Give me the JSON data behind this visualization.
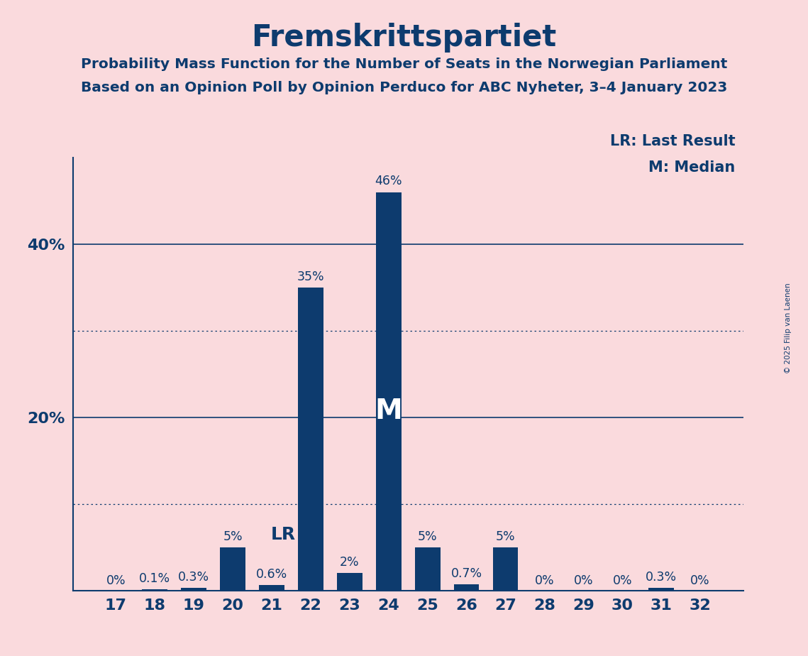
{
  "title": "Fremskrittspartiet",
  "subtitle1": "Probability Mass Function for the Number of Seats in the Norwegian Parliament",
  "subtitle2": "Based on an Opinion Poll by Opinion Perduco for ABC Nyheter, 3–4 January 2023",
  "copyright": "© 2025 Filip van Laenen",
  "legend_lr": "LR: Last Result",
  "legend_m": "M: Median",
  "background_color": "#FADADD",
  "bar_color": "#0D3B6E",
  "title_color": "#0D3B6E",
  "grid_color": "#0D3B6E",
  "categories": [
    17,
    18,
    19,
    20,
    21,
    22,
    23,
    24,
    25,
    26,
    27,
    28,
    29,
    30,
    31,
    32
  ],
  "values": [
    0.0,
    0.1,
    0.3,
    5.0,
    0.6,
    35.0,
    2.0,
    46.0,
    5.0,
    0.7,
    5.0,
    0.0,
    0.0,
    0.0,
    0.3,
    0.0
  ],
  "labels": [
    "0%",
    "0.1%",
    "0.3%",
    "5%",
    "0.6%",
    "35%",
    "2%",
    "46%",
    "5%",
    "0.7%",
    "5%",
    "0%",
    "0%",
    "0%",
    "0.3%",
    "0%"
  ],
  "lr_seat": 21,
  "median_seat": 24,
  "ylim": [
    0,
    50
  ],
  "solid_grid": [
    20,
    40
  ],
  "dotted_grid": [
    10,
    30
  ]
}
